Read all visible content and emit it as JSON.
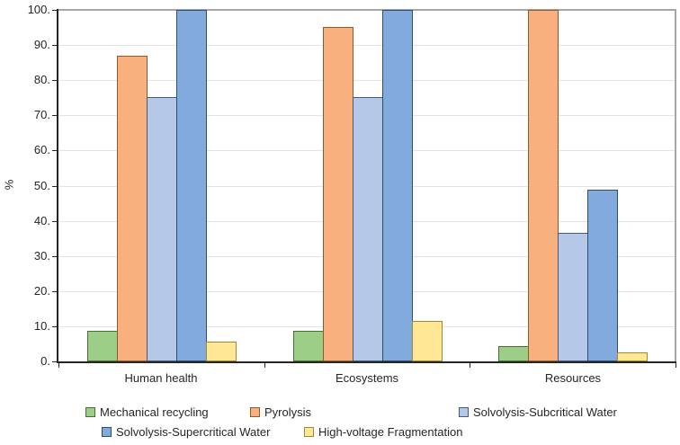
{
  "chart_data": {
    "type": "bar",
    "title": "",
    "xlabel": "",
    "ylabel": "%",
    "ylim": [
      0,
      100
    ],
    "grid": true,
    "legend_position": "bottom",
    "categories": [
      "Human health",
      "Ecosystems",
      "Resources"
    ],
    "ytick_labels": [
      "0.",
      "10.",
      "20.",
      "30.",
      "40.",
      "50.",
      "60.",
      "70.",
      "80.",
      "90.",
      "100."
    ],
    "ytick_values": [
      0,
      10,
      20,
      30,
      40,
      50,
      60,
      70,
      80,
      90,
      100
    ],
    "series": [
      {
        "name": "Mechanical recycling",
        "fill": "#9DCE87",
        "border": "#4C7031",
        "values": [
          8.8,
          8.8,
          4.3
        ]
      },
      {
        "name": "Pyrolysis",
        "fill": "#F8B07E",
        "border": "#8E5A2E",
        "values": [
          87.0,
          95.2,
          100.0
        ]
      },
      {
        "name": "Solvolysis-Subcritical Water",
        "fill": "#B5C8E8",
        "border": "#44597B",
        "values": [
          75.3,
          75.3,
          36.6
        ]
      },
      {
        "name": "Solvolysis-Supercritical Water",
        "fill": "#82AADC",
        "border": "#2E4D72",
        "values": [
          100.0,
          100.0,
          48.8
        ]
      },
      {
        "name": "High-voltage Fragmentation",
        "fill": "#FFE795",
        "border": "#9A8A35",
        "values": [
          5.5,
          11.5,
          2.5
        ]
      }
    ]
  }
}
